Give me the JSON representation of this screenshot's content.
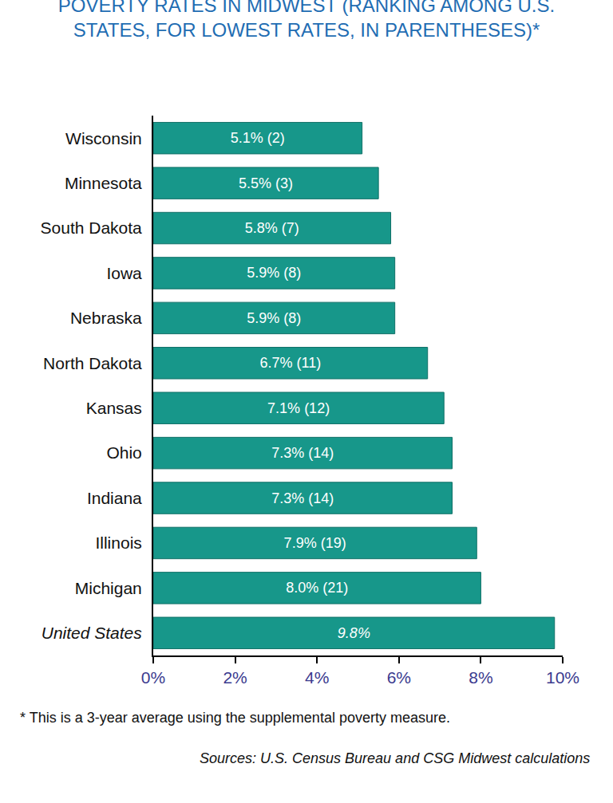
{
  "chart_data": {
    "type": "bar",
    "orientation": "horizontal",
    "title": "POVERTY RATES IN MIDWEST (RANKING AMONG U.S. STATES, FOR LOWEST RATES, IN PARENTHESES)*",
    "categories": [
      "Wisconsin",
      "Minnesota",
      "South Dakota",
      "Iowa",
      "Nebraska",
      "North Dakota",
      "Kansas",
      "Ohio",
      "Indiana",
      "Illinois",
      "Michigan",
      "United States"
    ],
    "values": [
      5.1,
      5.5,
      5.8,
      5.9,
      5.9,
      6.7,
      7.1,
      7.3,
      7.3,
      7.9,
      8.0,
      9.8
    ],
    "value_labels": [
      "5.1% (2)",
      "5.5% (3)",
      "5.8% (7)",
      "5.9% (8)",
      "5.9% (8)",
      "6.7% (11)",
      "7.1% (12)",
      "7.3% (14)",
      "7.3% (14)",
      "7.9% (19)",
      "8.0% (21)",
      "9.8%"
    ],
    "data_labels": true,
    "color": "#17978a",
    "xlim": [
      0,
      10
    ],
    "xticks": [
      {
        "value": 0,
        "label": "0%"
      },
      {
        "value": 2,
        "label": "2%"
      },
      {
        "value": 4,
        "label": "4%"
      },
      {
        "value": 6,
        "label": "6%"
      },
      {
        "value": 8,
        "label": "8%"
      },
      {
        "value": 10,
        "label": "10%"
      }
    ],
    "grid": false,
    "footnote": "* This is a 3-year average using the supplemental poverty measure.",
    "source": "Sources: U.S. Census Bureau and CSG Midwest calculations"
  }
}
